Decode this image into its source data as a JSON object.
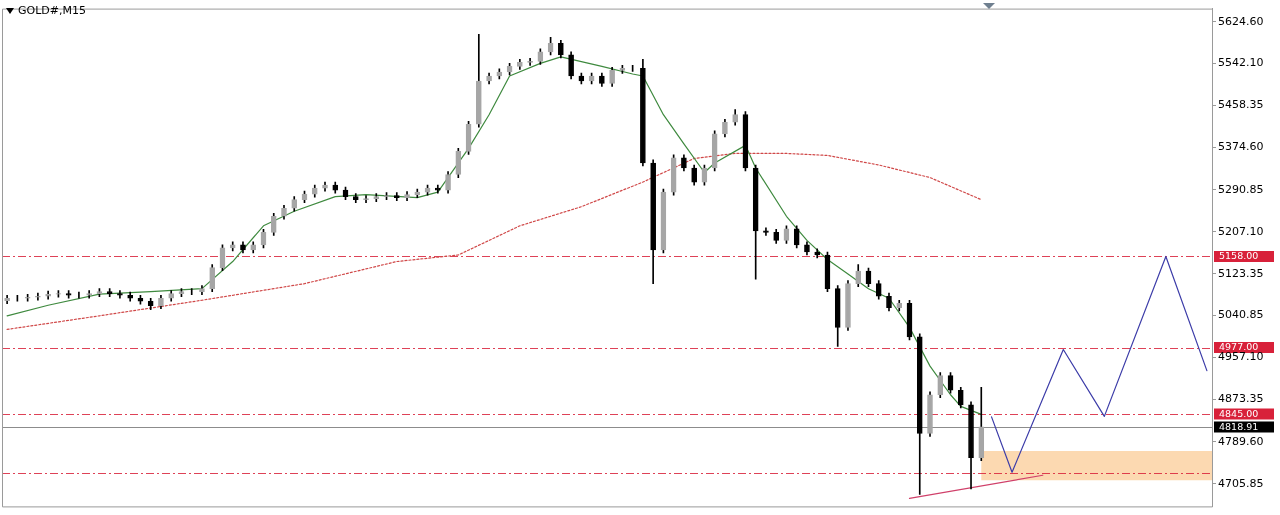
{
  "chart_data": {
    "type": "candlestick",
    "title": "GOLD#,M15",
    "color": "#000000",
    "colors": [
      "#a6a6a6",
      "#a6a6a6",
      "#a6a6a6",
      "#a6a6a6",
      "#a6a6a6",
      "#a6a6a6",
      "#000000",
      "#a6a6a6",
      "#a6a6a6",
      "#a6a6a6",
      "#000000",
      "#000000",
      "#000000",
      "#000000",
      "#000000",
      "#a6a6a6",
      "#a6a6a6",
      "#a6a6a6",
      "#a6a6a6",
      "#a6a6a6",
      "#a6a6a6",
      "#a6a6a6",
      "#a6a6a6",
      "#000000",
      "#a6a6a6",
      "#a6a6a6",
      "#a6a6a6",
      "#a6a6a6",
      "#a6a6a6",
      "#a6a6a6",
      "#a6a6a6",
      "#a6a6a6",
      "#000000",
      "#000000",
      "#000000",
      "#a6a6a6",
      "#a6a6a6",
      "#a6a6a6",
      "#000000",
      "#a6a6a6",
      "#a6a6a6",
      "#a6a6a6",
      "#000000",
      "#a6a6a6",
      "#a6a6a6",
      "#a6a6a6",
      "#a6a6a6",
      "#a6a6a6",
      "#a6a6a6",
      "#a6a6a6",
      "#a6a6a6",
      "#a6a6a6",
      "#a6a6a6",
      "#a6a6a6",
      "#000000",
      "#000000",
      "#000000",
      "#a6a6a6",
      "#000000",
      "#a6a6a6",
      "#a6a6a6",
      "#a6a6a6",
      "#000000",
      "#000000",
      "#a6a6a6",
      "#a6a6a6",
      "#000000",
      "#000000",
      "#a6a6a6",
      "#a6a6a6",
      "#a6a6a6",
      "#a6a6a6",
      "#000000",
      "#000000",
      "#000000",
      "#000000",
      "#a6a6a6",
      "#000000",
      "#000000",
      "#000000",
      "#000000",
      "#000000",
      "#a6a6a6",
      "#a6a6a6",
      "#000000",
      "#000000",
      "#000000",
      "#a6a6a6",
      "#000000",
      "#000000",
      "#a6a6a6",
      "#a6a6a6",
      "#000000",
      "#000000",
      "#000000",
      "#a6a6a6",
      null,
      null,
      null,
      null,
      null,
      null,
      null,
      null,
      null,
      null,
      null,
      null,
      null,
      null,
      null,
      null,
      null,
      null,
      null,
      null,
      null,
      null
    ],
    "categories": [
      null,
      null,
      null,
      null,
      null,
      null,
      null,
      null,
      null,
      null,
      null,
      null,
      null,
      null,
      null,
      null,
      null,
      null,
      null,
      null,
      null,
      null,
      null,
      null,
      null,
      null,
      null,
      null,
      null,
      null,
      null,
      null,
      null,
      null,
      null,
      null,
      null,
      null,
      null,
      null,
      null,
      null,
      null,
      null,
      null,
      null,
      null,
      null,
      null,
      null,
      null,
      null,
      null,
      null,
      null,
      null,
      null,
      null,
      null,
      null,
      null,
      null,
      null,
      null,
      null,
      null,
      null,
      null,
      null,
      null,
      null,
      null,
      null,
      null,
      null,
      null,
      null,
      null,
      null,
      null,
      null,
      null,
      null,
      null,
      null,
      null,
      null,
      null,
      null,
      null,
      null,
      null,
      null,
      null,
      null,
      null,
      null,
      null,
      null,
      null,
      null,
      null,
      null,
      null,
      null,
      null,
      null,
      null,
      null,
      null,
      null,
      null,
      null,
      null,
      null,
      null,
      null,
      null
    ],
    "ohlc": [
      [
        5070,
        5081,
        5064,
        5075
      ],
      [
        5075,
        5081,
        5069,
        5075
      ],
      [
        5075,
        5083,
        5069,
        5077
      ],
      [
        5077,
        5085,
        5071,
        5079
      ],
      [
        5079,
        5089,
        5073,
        5083
      ],
      [
        5083,
        5090,
        5077,
        5084
      ],
      [
        5084,
        5090,
        5075,
        5081
      ],
      [
        5081,
        5087,
        5075,
        5081
      ],
      [
        5081,
        5090,
        5075,
        5084
      ],
      [
        5084,
        5094,
        5078,
        5088
      ],
      [
        5088,
        5094,
        5078,
        5084
      ],
      [
        5084,
        5090,
        5075,
        5081
      ],
      [
        5081,
        5087,
        5069,
        5075
      ],
      [
        5075,
        5081,
        5063,
        5069
      ],
      [
        5069,
        5075,
        5052,
        5060
      ],
      [
        5060,
        5081,
        5054,
        5075
      ],
      [
        5075,
        5090,
        5069,
        5084
      ],
      [
        5084,
        5094,
        5078,
        5088
      ],
      [
        5088,
        5094,
        5082,
        5088
      ],
      [
        5088,
        5100,
        5082,
        5094
      ],
      [
        5094,
        5142,
        5088,
        5136
      ],
      [
        5136,
        5181,
        5130,
        5175
      ],
      [
        5175,
        5187,
        5169,
        5181
      ],
      [
        5181,
        5187,
        5165,
        5171
      ],
      [
        5171,
        5187,
        5165,
        5181
      ],
      [
        5181,
        5212,
        5175,
        5206
      ],
      [
        5206,
        5244,
        5200,
        5238
      ],
      [
        5238,
        5260,
        5232,
        5254
      ],
      [
        5254,
        5277,
        5248,
        5271
      ],
      [
        5271,
        5288,
        5265,
        5282
      ],
      [
        5282,
        5300,
        5276,
        5294
      ],
      [
        5294,
        5306,
        5288,
        5300
      ],
      [
        5300,
        5306,
        5284,
        5290
      ],
      [
        5290,
        5296,
        5271,
        5277
      ],
      [
        5277,
        5283,
        5265,
        5271
      ],
      [
        5271,
        5279,
        5265,
        5273
      ],
      [
        5273,
        5283,
        5267,
        5277
      ],
      [
        5277,
        5285,
        5271,
        5279
      ],
      [
        5279,
        5285,
        5269,
        5275
      ],
      [
        5275,
        5287,
        5269,
        5281
      ],
      [
        5281,
        5292,
        5275,
        5286
      ],
      [
        5286,
        5300,
        5280,
        5294
      ],
      [
        5294,
        5300,
        5284,
        5290
      ],
      [
        5290,
        5327,
        5284,
        5321
      ],
      [
        5321,
        5373,
        5315,
        5367
      ],
      [
        5367,
        5427,
        5361,
        5421
      ],
      [
        5421,
        5600,
        5415,
        5507
      ],
      [
        5507,
        5523,
        5501,
        5517
      ],
      [
        5517,
        5531,
        5511,
        5525
      ],
      [
        5525,
        5542,
        5519,
        5536
      ],
      [
        5536,
        5550,
        5530,
        5544
      ],
      [
        5544,
        5552,
        5538,
        5546
      ],
      [
        5546,
        5571,
        5540,
        5565
      ],
      [
        5565,
        5594,
        5559,
        5582
      ],
      [
        5582,
        5588,
        5553,
        5559
      ],
      [
        5559,
        5565,
        5511,
        5517
      ],
      [
        5517,
        5523,
        5501,
        5507
      ],
      [
        5507,
        5523,
        5501,
        5517
      ],
      [
        5517,
        5523,
        5496,
        5502
      ],
      [
        5502,
        5534,
        5496,
        5528
      ],
      [
        5528,
        5538,
        5522,
        5532
      ],
      [
        5532,
        5538,
        5526,
        5532
      ],
      [
        5532,
        5550,
        5338,
        5344
      ],
      [
        5344,
        5350,
        5104,
        5171
      ],
      [
        5171,
        5292,
        5165,
        5286
      ],
      [
        5286,
        5360,
        5280,
        5354
      ],
      [
        5354,
        5360,
        5328,
        5334
      ],
      [
        5334,
        5340,
        5300,
        5306
      ],
      [
        5306,
        5340,
        5300,
        5334
      ],
      [
        5334,
        5408,
        5328,
        5402
      ],
      [
        5402,
        5431,
        5396,
        5425
      ],
      [
        5425,
        5450,
        5419,
        5440
      ],
      [
        5440,
        5446,
        5328,
        5334
      ],
      [
        5334,
        5340,
        5113,
        5209
      ],
      [
        5209,
        5215,
        5200,
        5206
      ],
      [
        5206,
        5212,
        5184,
        5190
      ],
      [
        5190,
        5219,
        5184,
        5213
      ],
      [
        5213,
        5219,
        5175,
        5181
      ],
      [
        5181,
        5187,
        5161,
        5167
      ],
      [
        5167,
        5173,
        5155,
        5161
      ],
      [
        5161,
        5167,
        5088,
        5094
      ],
      [
        5094,
        5100,
        4979,
        5017
      ],
      [
        5017,
        5110,
        5011,
        5104
      ],
      [
        5104,
        5142,
        5098,
        5129
      ],
      [
        5129,
        5135,
        5098,
        5104
      ],
      [
        5104,
        5110,
        5073,
        5079
      ],
      [
        5079,
        5085,
        5050,
        5056
      ],
      [
        5056,
        5071,
        5050,
        5065
      ],
      [
        5065,
        5071,
        4992,
        4998
      ],
      [
        4998,
        5004,
        4685,
        4806
      ],
      [
        4806,
        4889,
        4800,
        4883
      ],
      [
        4883,
        4927,
        4877,
        4921
      ],
      [
        4921,
        4927,
        4886,
        4892
      ],
      [
        4892,
        4898,
        4857,
        4863
      ],
      [
        4863,
        4869,
        4696,
        4758
      ],
      [
        4758,
        4898,
        4752,
        4819
      ],
      null,
      null,
      null,
      null,
      null,
      null,
      null,
      null,
      null,
      null,
      null,
      null,
      null,
      null,
      null,
      null,
      null,
      null,
      null,
      null,
      null,
      null
    ],
    "series": [
      {
        "type": "line",
        "color": "#3f8a3f",
        "line_style": "solid",
        "values": [
          5040,
          null,
          null,
          null,
          5061,
          null,
          null,
          null,
          null,
          5083,
          null,
          null,
          null,
          null,
          5088,
          null,
          null,
          null,
          null,
          5094,
          null,
          null,
          5148,
          null,
          null,
          5219,
          null,
          null,
          5248,
          null,
          null,
          null,
          5277,
          null,
          null,
          5281,
          null,
          null,
          null,
          null,
          5275,
          null,
          5286,
          null,
          null,
          5373,
          null,
          5440,
          null,
          5517,
          null,
          null,
          5542,
          null,
          5555,
          null,
          null,
          null,
          5536,
          null,
          null,
          5521,
          5517,
          null,
          5440,
          null,
          5382,
          null,
          5325,
          5344,
          null,
          null,
          5379,
          5334,
          null,
          null,
          5238,
          null,
          5190,
          null,
          5152,
          null,
          5123,
          null,
          5094,
          null,
          5075,
          null,
          5017,
          null,
          4940,
          null,
          4883,
          4860,
          null,
          4844,
          null,
          null,
          null,
          null,
          null,
          null,
          null,
          null,
          null,
          null,
          null,
          null,
          null,
          null,
          null,
          null,
          null,
          null,
          null,
          null,
          null,
          null
        ]
      },
      {
        "type": "line",
        "color": "#d04848",
        "line_style": "dotted",
        "values": [
          5013,
          null,
          null,
          null,
          null,
          null,
          null,
          null,
          null,
          5040,
          null,
          null,
          null,
          null,
          null,
          null,
          null,
          null,
          null,
          5071,
          null,
          null,
          null,
          null,
          null,
          null,
          null,
          null,
          null,
          5104,
          null,
          null,
          null,
          null,
          null,
          null,
          null,
          null,
          5148,
          null,
          null,
          null,
          null,
          null,
          5161,
          null,
          null,
          null,
          null,
          null,
          5219,
          null,
          null,
          null,
          null,
          null,
          5257,
          null,
          null,
          null,
          null,
          null,
          5306,
          null,
          null,
          null,
          null,
          5353,
          null,
          null,
          null,
          5363,
          null,
          null,
          null,
          null,
          5363,
          null,
          null,
          null,
          5359,
          null,
          null,
          null,
          null,
          5340,
          null,
          null,
          null,
          null,
          5315,
          null,
          null,
          null,
          null,
          5271,
          null,
          null,
          null,
          null,
          null,
          null,
          null,
          null,
          null,
          null,
          null,
          null,
          null,
          null,
          null,
          null,
          null,
          null,
          null,
          null,
          null,
          null
        ]
      },
      {
        "type": "line",
        "color": "#3c3ca8",
        "line_style": "solid",
        "values": [
          null,
          null,
          null,
          null,
          null,
          null,
          null,
          null,
          null,
          null,
          null,
          null,
          null,
          null,
          null,
          null,
          null,
          null,
          null,
          null,
          null,
          null,
          null,
          null,
          null,
          null,
          null,
          null,
          null,
          null,
          null,
          null,
          null,
          null,
          null,
          null,
          null,
          null,
          null,
          null,
          null,
          null,
          null,
          null,
          null,
          null,
          null,
          null,
          null,
          null,
          null,
          null,
          null,
          null,
          null,
          null,
          null,
          null,
          null,
          null,
          null,
          null,
          null,
          null,
          null,
          null,
          null,
          null,
          null,
          null,
          null,
          null,
          null,
          null,
          null,
          null,
          null,
          null,
          null,
          null,
          null,
          null,
          null,
          null,
          null,
          null,
          null,
          null,
          null,
          null,
          null,
          null,
          null,
          null,
          null,
          null,
          4839,
          null,
          4729,
          null,
          null,
          null,
          null,
          4973,
          null,
          null,
          null,
          4840,
          null,
          null,
          null,
          null,
          null,
          5158,
          null,
          null,
          null,
          4931
        ]
      },
      {
        "type": "line",
        "color": "#d0406a",
        "line_style": "solid",
        "values": [
          null,
          null,
          null,
          null,
          null,
          null,
          null,
          null,
          null,
          null,
          null,
          null,
          null,
          null,
          null,
          null,
          null,
          null,
          null,
          null,
          null,
          null,
          null,
          null,
          null,
          null,
          null,
          null,
          null,
          null,
          null,
          null,
          null,
          null,
          null,
          null,
          null,
          null,
          null,
          null,
          null,
          null,
          null,
          null,
          null,
          null,
          null,
          null,
          null,
          null,
          null,
          null,
          null,
          null,
          null,
          null,
          null,
          null,
          null,
          null,
          null,
          null,
          null,
          null,
          null,
          null,
          null,
          null,
          null,
          null,
          null,
          null,
          null,
          null,
          null,
          null,
          null,
          null,
          null,
          null,
          null,
          null,
          null,
          null,
          null,
          null,
          null,
          null,
          4677,
          null,
          null,
          null,
          null,
          null,
          null,
          null,
          null,
          null,
          null,
          null,
          null,
          4723,
          null,
          null,
          null,
          null,
          null,
          null,
          null,
          null,
          null,
          null,
          null,
          null,
          null,
          null,
          null,
          null
        ]
      }
    ],
    "ylim": [
      4661,
      5651
    ],
    "yticks": [
      {
        "value": 4705.85,
        "label": "4705.85"
      },
      {
        "value": 4789.6,
        "label": "4789.60"
      },
      {
        "value": 4873.35,
        "label": "4873.35"
      },
      {
        "value": 4957.1,
        "label": "4957.10"
      },
      {
        "value": 5040.85,
        "label": "5040.85"
      },
      {
        "value": 5123.35,
        "label": "5123.35"
      },
      {
        "value": 5207.1,
        "label": "5207.10"
      },
      {
        "value": 5290.85,
        "label": "5290.85"
      },
      {
        "value": 5374.6,
        "label": "5374.60"
      },
      {
        "value": 5458.35,
        "label": "5458.35"
      },
      {
        "value": 5542.1,
        "label": "5542.10"
      },
      {
        "value": 5624.6,
        "label": "5624.60"
      }
    ],
    "ref_lines": [
      {
        "axis": "y",
        "value": 5158,
        "label": "5158.00",
        "color": "#d8213a",
        "line_style": "dashed"
      },
      {
        "axis": "y",
        "value": 4977,
        "label": "4977.00",
        "color": "#d8213a",
        "line_style": "dashed"
      },
      {
        "axis": "y",
        "value": 4845,
        "label": "4845.00",
        "color": "#d8213a",
        "line_style": "dashed"
      },
      {
        "axis": "y",
        "value": 4727,
        "color": "#d8213a",
        "line_style": "dashed"
      },
      {
        "axis": "y",
        "value": 4818.91,
        "label": "4818.91",
        "color": "#000000",
        "line_style": "solid"
      }
    ],
    "bands": [
      {
        "axis": "y",
        "from": 4713,
        "to": 4771,
        "color": "#fcd9b1"
      }
    ],
    "grid": false,
    "legend": false
  }
}
